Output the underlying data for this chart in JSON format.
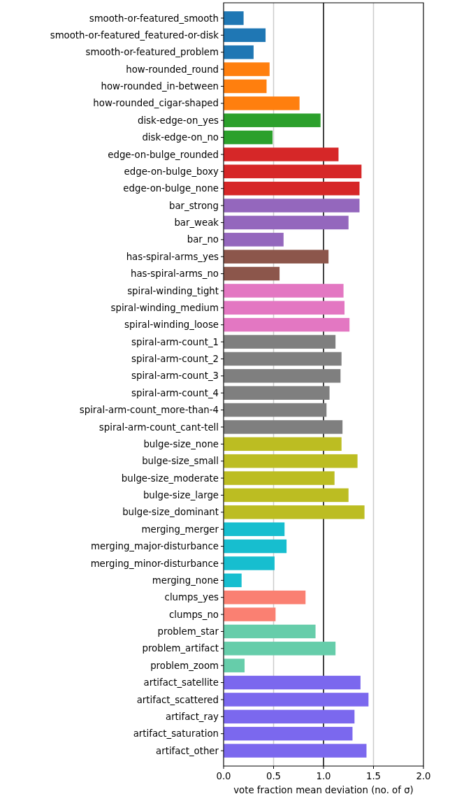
{
  "chart_data": {
    "type": "bar",
    "orientation": "horizontal",
    "xlabel": "vote fraction mean deviation (no. of σ)",
    "categories": [
      "smooth-or-featured_smooth",
      "smooth-or-featured_featured-or-disk",
      "smooth-or-featured_problem",
      "how-rounded_round",
      "how-rounded_in-between",
      "how-rounded_cigar-shaped",
      "disk-edge-on_yes",
      "disk-edge-on_no",
      "edge-on-bulge_rounded",
      "edge-on-bulge_boxy",
      "edge-on-bulge_none",
      "bar_strong",
      "bar_weak",
      "bar_no",
      "has-spiral-arms_yes",
      "has-spiral-arms_no",
      "spiral-winding_tight",
      "spiral-winding_medium",
      "spiral-winding_loose",
      "spiral-arm-count_1",
      "spiral-arm-count_2",
      "spiral-arm-count_3",
      "spiral-arm-count_4",
      "spiral-arm-count_more-than-4",
      "spiral-arm-count_cant-tell",
      "bulge-size_none",
      "bulge-size_small",
      "bulge-size_moderate",
      "bulge-size_large",
      "bulge-size_dominant",
      "merging_merger",
      "merging_major-disturbance",
      "merging_minor-disturbance",
      "merging_none",
      "clumps_yes",
      "clumps_no",
      "problem_star",
      "problem_artifact",
      "problem_zoom",
      "artifact_satellite",
      "artifact_scattered",
      "artifact_ray",
      "artifact_saturation",
      "artifact_other"
    ],
    "values": [
      0.2,
      0.42,
      0.3,
      0.46,
      0.43,
      0.76,
      0.97,
      0.49,
      1.15,
      1.38,
      1.36,
      1.36,
      1.25,
      0.6,
      1.05,
      0.56,
      1.2,
      1.21,
      1.26,
      1.12,
      1.18,
      1.17,
      1.06,
      1.03,
      1.19,
      1.18,
      1.34,
      1.11,
      1.25,
      1.41,
      0.61,
      0.63,
      0.51,
      0.18,
      0.82,
      0.52,
      0.92,
      1.12,
      0.21,
      1.37,
      1.45,
      1.31,
      1.29,
      1.43
    ],
    "colors": [
      "#1f77b4",
      "#1f77b4",
      "#1f77b4",
      "#ff7f0e",
      "#ff7f0e",
      "#ff7f0e",
      "#2ca02c",
      "#2ca02c",
      "#d62728",
      "#d62728",
      "#d62728",
      "#9467bd",
      "#9467bd",
      "#9467bd",
      "#8c564b",
      "#8c564b",
      "#e377c2",
      "#e377c2",
      "#e377c2",
      "#7f7f7f",
      "#7f7f7f",
      "#7f7f7f",
      "#7f7f7f",
      "#7f7f7f",
      "#7f7f7f",
      "#bcbd22",
      "#bcbd22",
      "#bcbd22",
      "#bcbd22",
      "#bcbd22",
      "#17becf",
      "#17becf",
      "#17becf",
      "#17becf",
      "#fa8072",
      "#fa8072",
      "#66cdaa",
      "#66cdaa",
      "#66cdaa",
      "#7b68ee",
      "#7b68ee",
      "#7b68ee",
      "#7b68ee",
      "#7b68ee"
    ],
    "xlim": [
      0,
      2
    ],
    "xticks": [
      {
        "value": 0,
        "label": "0.0"
      },
      {
        "value": 0.5,
        "label": "0.5"
      },
      {
        "value": 1,
        "label": "1.0"
      },
      {
        "value": 1.5,
        "label": "1.5"
      },
      {
        "value": 2,
        "label": "2.0"
      }
    ],
    "grid": "x",
    "ref_lines": [
      {
        "axis": "x",
        "value": 1,
        "color": "#444444"
      }
    ]
  }
}
